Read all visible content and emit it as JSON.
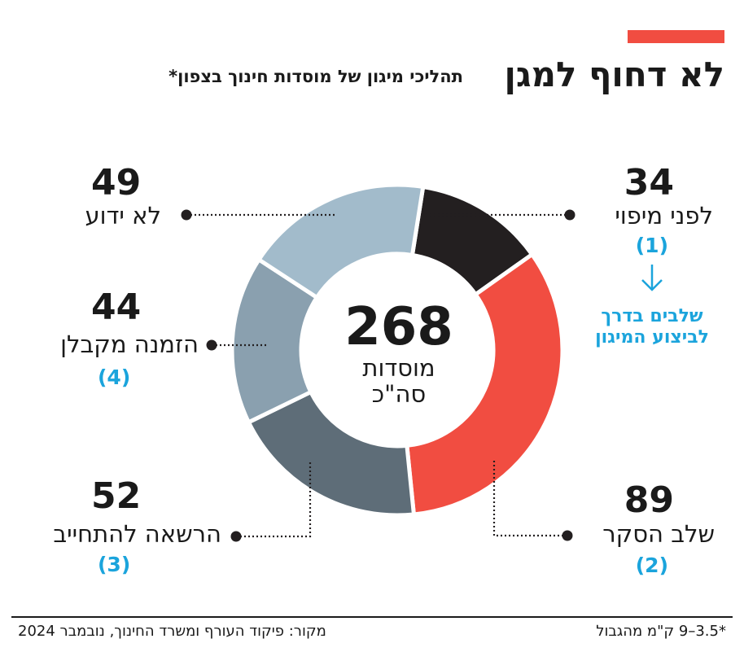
{
  "header": {
    "title": "לא דחוף למגן",
    "subtitle": "תהליכי מיגון של מוסדות חינוך בצפון*"
  },
  "chart_data": {
    "type": "pie",
    "categories": [
      "לפני מיפוי",
      "שלב הסקר",
      "הרשאה להתחייב",
      "הזמנה מקבלן",
      "לא ידוע"
    ],
    "values": [
      34,
      89,
      52,
      44,
      49
    ],
    "step_numbers": [
      "(1)",
      "(2)",
      "(3)",
      "(4)",
      ""
    ],
    "colors": [
      "#231f20",
      "#f14d41",
      "#5e6d78",
      "#8aa0af",
      "#a2bbcb"
    ],
    "total": {
      "value": "268",
      "line1": "מוסדות",
      "line2": "סה\"כ"
    },
    "stage_note": "שלבים בדרך לביצוע המיגון",
    "accent_color": "#1ba4dc"
  },
  "footer": {
    "footnote": "*3.5–9 ק\"מ מהגבול",
    "source": "מקור: פיקוד העורף ומשרד החינוך, נובמבר 2024"
  }
}
